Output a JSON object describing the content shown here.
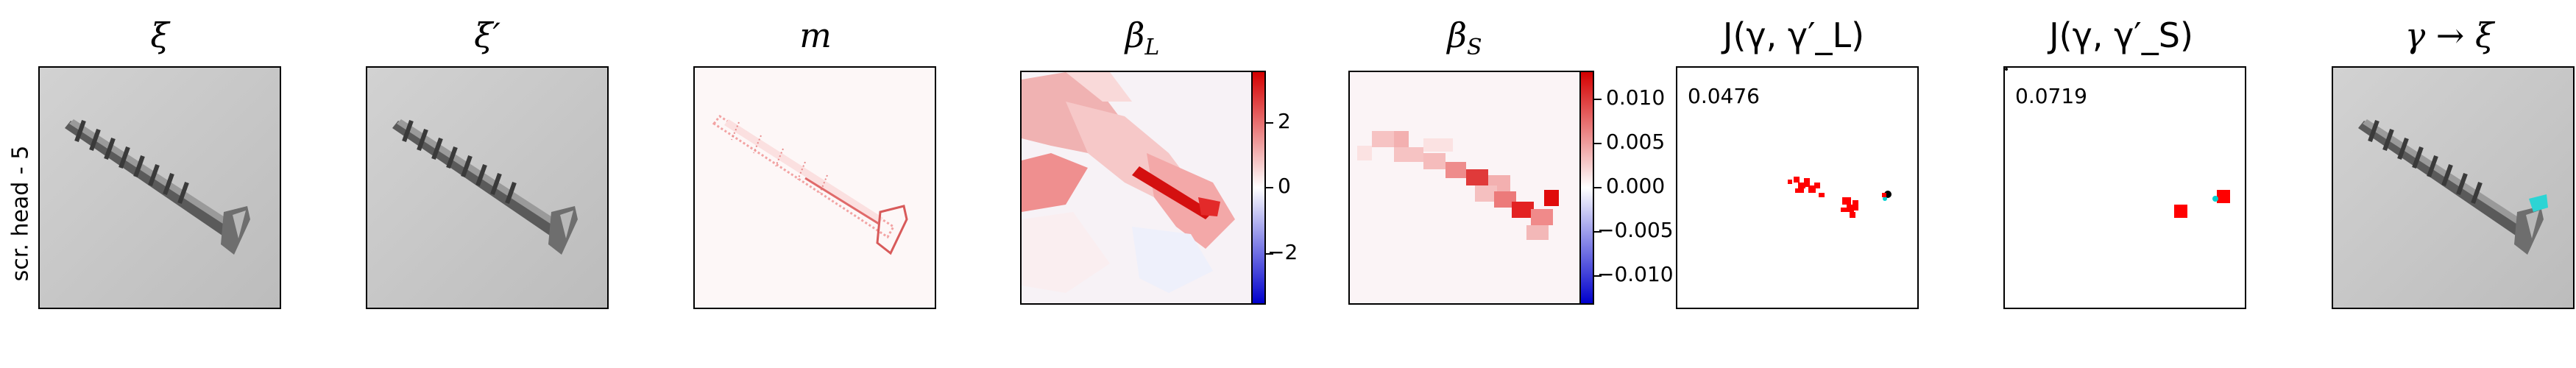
{
  "row_label": "scr. head - 5",
  "panels": [
    {
      "title": "ξ"
    },
    {
      "title": "ξ′"
    },
    {
      "title": "m"
    },
    {
      "title": "β_L"
    },
    {
      "title": "β_S"
    },
    {
      "title": "J(γ, γ′_L)",
      "score": "0.0476"
    },
    {
      "title": "J(γ, γ′_S)",
      "score": "0.0719"
    },
    {
      "title": "γ → ξ"
    }
  ],
  "colorbar_L": {
    "ticks": [
      "2",
      "0",
      "−2"
    ],
    "colors": {
      "high": "#d40000",
      "mid": "#ffffff",
      "low": "#0000cc"
    }
  },
  "colorbar_S": {
    "ticks": [
      "0.010",
      "0.005",
      "0.000",
      "−0.005",
      "−0.010"
    ],
    "colors": {
      "high": "#d40000",
      "mid": "#ffffff",
      "low": "#0000cc"
    }
  },
  "colors": {
    "match": "#ff0000",
    "keypoint": "#00d0d0"
  }
}
